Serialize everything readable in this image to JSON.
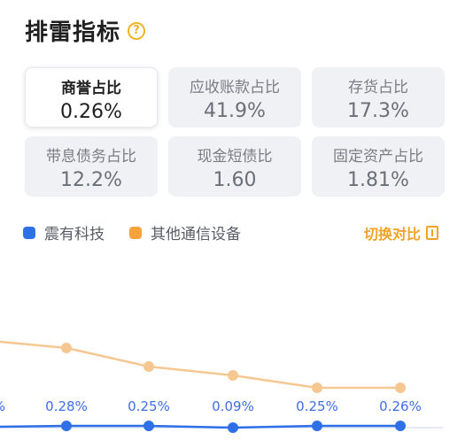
{
  "header": {
    "title": "排雷指标",
    "help_icon": "question-circle-icon"
  },
  "metrics": [
    {
      "label": "商誉占比",
      "value": "0.26%",
      "active": true
    },
    {
      "label": "应收账款占比",
      "value": "41.9%",
      "active": false
    },
    {
      "label": "存货占比",
      "value": "17.3%",
      "active": false
    },
    {
      "label": "带息债务占比",
      "value": "12.2%",
      "active": false
    },
    {
      "label": "现金短债比",
      "value": "1.60",
      "active": false
    },
    {
      "label": "固定资产占比",
      "value": "1.81%",
      "active": false
    }
  ],
  "legend": [
    {
      "name": "震有科技",
      "color": "#2f6fe8"
    },
    {
      "name": "其他通信设备",
      "color": "#f5a33a"
    }
  ],
  "switch_label": "切换对比",
  "colors": {
    "accent": "#f0a326",
    "blue": "#2f6fe8",
    "orange": "#f5c791"
  },
  "chart_data": {
    "type": "line",
    "series": [
      {
        "name": "震有科技",
        "values": [
          0.28,
          0.25,
          0.09,
          0.25,
          0.26
        ]
      },
      {
        "name": "其他通信设备",
        "values": [
          null,
          null,
          null,
          null,
          null
        ]
      }
    ],
    "labels": [
      "0.28%",
      "0.25%",
      "0.09%",
      "0.25%",
      "0.26%"
    ],
    "partial_left_label": "%"
  }
}
